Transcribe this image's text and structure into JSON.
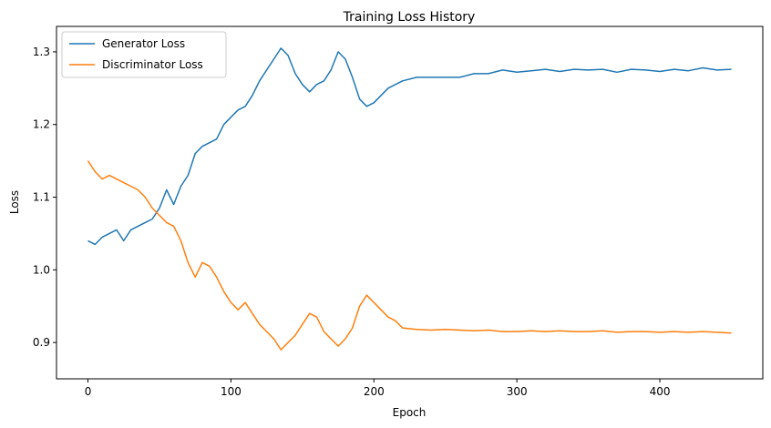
{
  "chart_data": {
    "type": "line",
    "title": "Training Loss History",
    "xlabel": "Epoch",
    "ylabel": "Loss",
    "xlim": [
      -22,
      472
    ],
    "ylim": [
      0.85,
      1.335
    ],
    "xticks": [
      0,
      100,
      200,
      300,
      400
    ],
    "yticks": [
      0.9,
      1.0,
      1.1,
      1.2,
      1.3
    ],
    "ytick_labels": [
      "0.9",
      "1.0",
      "1.1",
      "1.2",
      "1.3"
    ],
    "legend_position": "top-left",
    "grid": false,
    "series": [
      {
        "name": "Generator Loss",
        "color": "#1f77b4",
        "x": [
          0,
          5,
          10,
          15,
          20,
          25,
          30,
          35,
          40,
          45,
          50,
          55,
          60,
          65,
          70,
          75,
          80,
          85,
          90,
          95,
          100,
          105,
          110,
          115,
          120,
          125,
          130,
          135,
          140,
          145,
          150,
          155,
          160,
          165,
          170,
          175,
          180,
          185,
          190,
          195,
          200,
          205,
          210,
          215,
          220,
          230,
          240,
          250,
          260,
          270,
          280,
          290,
          300,
          310,
          320,
          330,
          340,
          350,
          360,
          370,
          380,
          390,
          400,
          410,
          420,
          430,
          440,
          450
        ],
        "y": [
          1.04,
          1.035,
          1.045,
          1.05,
          1.055,
          1.04,
          1.055,
          1.06,
          1.065,
          1.07,
          1.085,
          1.11,
          1.09,
          1.115,
          1.13,
          1.16,
          1.17,
          1.175,
          1.18,
          1.2,
          1.21,
          1.22,
          1.225,
          1.24,
          1.26,
          1.275,
          1.29,
          1.305,
          1.295,
          1.27,
          1.255,
          1.245,
          1.255,
          1.26,
          1.275,
          1.3,
          1.29,
          1.265,
          1.235,
          1.225,
          1.23,
          1.24,
          1.25,
          1.255,
          1.26,
          1.265,
          1.265,
          1.265,
          1.265,
          1.27,
          1.27,
          1.275,
          1.272,
          1.274,
          1.276,
          1.273,
          1.276,
          1.275,
          1.276,
          1.272,
          1.276,
          1.275,
          1.273,
          1.276,
          1.274,
          1.278,
          1.275,
          1.276
        ]
      },
      {
        "name": "Discriminator Loss",
        "color": "#ff7f0e",
        "x": [
          0,
          5,
          10,
          15,
          20,
          25,
          30,
          35,
          40,
          45,
          50,
          55,
          60,
          65,
          70,
          75,
          80,
          85,
          90,
          95,
          100,
          105,
          110,
          115,
          120,
          125,
          130,
          135,
          140,
          145,
          150,
          155,
          160,
          165,
          170,
          175,
          180,
          185,
          190,
          195,
          200,
          205,
          210,
          215,
          220,
          230,
          240,
          250,
          260,
          270,
          280,
          290,
          300,
          310,
          320,
          330,
          340,
          350,
          360,
          370,
          380,
          390,
          400,
          410,
          420,
          430,
          440,
          450
        ],
        "y": [
          1.15,
          1.135,
          1.125,
          1.13,
          1.125,
          1.12,
          1.115,
          1.11,
          1.1,
          1.085,
          1.075,
          1.065,
          1.06,
          1.04,
          1.01,
          0.99,
          1.01,
          1.005,
          0.99,
          0.97,
          0.955,
          0.945,
          0.955,
          0.94,
          0.925,
          0.915,
          0.905,
          0.89,
          0.9,
          0.91,
          0.925,
          0.94,
          0.935,
          0.915,
          0.905,
          0.895,
          0.905,
          0.92,
          0.95,
          0.965,
          0.955,
          0.945,
          0.935,
          0.93,
          0.92,
          0.918,
          0.917,
          0.918,
          0.917,
          0.916,
          0.917,
          0.915,
          0.915,
          0.916,
          0.915,
          0.916,
          0.915,
          0.915,
          0.916,
          0.914,
          0.915,
          0.915,
          0.914,
          0.915,
          0.914,
          0.915,
          0.914,
          0.913
        ]
      }
    ]
  }
}
